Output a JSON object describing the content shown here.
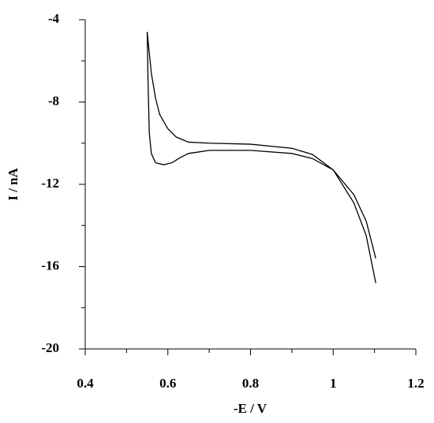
{
  "chart_data": {
    "type": "line",
    "xlabel": "-E / V",
    "ylabel": "I / nA",
    "xlim": [
      0.4,
      1.2
    ],
    "xticks": [
      0.4,
      0.6,
      0.8,
      1,
      1.2
    ],
    "xminorticks": [
      0.5,
      0.7,
      0.9,
      1.1
    ],
    "ylim": [
      -20,
      -4
    ],
    "yticks": [
      -20,
      -16,
      -12,
      -8,
      -4
    ],
    "yminorticks": [
      -18,
      -14,
      -10,
      -6
    ],
    "series": [
      {
        "color": "#000000",
        "x": [
          0.55,
          0.56,
          0.57,
          0.58,
          0.6,
          0.62,
          0.65,
          0.7,
          0.8,
          0.9,
          0.95,
          1.0,
          1.05,
          1.08,
          1.103
        ],
        "values": [
          -4.6,
          -6.6,
          -7.8,
          -8.6,
          -9.3,
          -9.7,
          -9.95,
          -10.0,
          -10.05,
          -10.25,
          -10.55,
          -11.3,
          -12.9,
          -14.5,
          -16.8
        ]
      },
      {
        "color": "#000000",
        "x": [
          0.55,
          0.552,
          0.555,
          0.56,
          0.57,
          0.59,
          0.61,
          0.63,
          0.65,
          0.7,
          0.8,
          0.9,
          0.95,
          1.0,
          1.05,
          1.08,
          1.103
        ],
        "values": [
          -4.6,
          -7.0,
          -9.5,
          -10.5,
          -10.95,
          -11.05,
          -10.95,
          -10.7,
          -10.5,
          -10.35,
          -10.35,
          -10.5,
          -10.75,
          -11.3,
          -12.5,
          -13.8,
          -15.6
        ]
      }
    ]
  }
}
